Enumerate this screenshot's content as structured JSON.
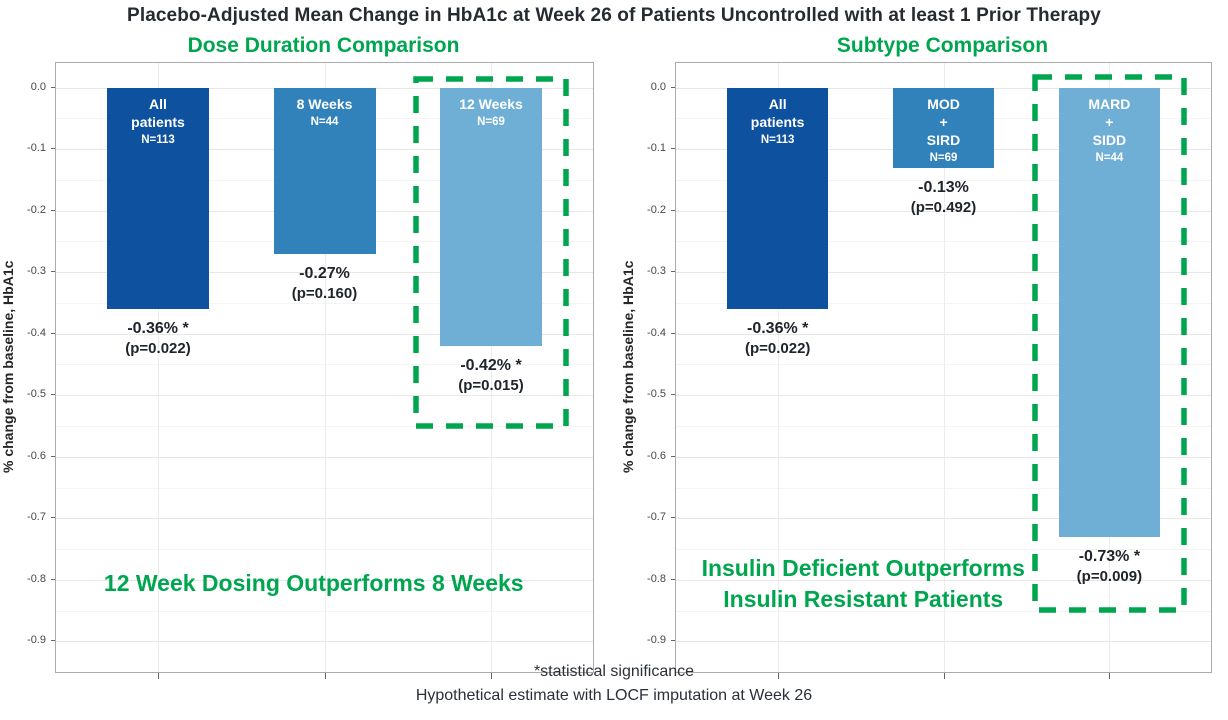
{
  "title": "Placebo-Adjusted Mean Change in HbA1c at Week 26 of Patients Uncontrolled with at least 1 Prior Therapy",
  "footnotes": {
    "line1": "*statistical significance",
    "line2": "Hypothetical estimate with LOCF imputation at Week 26"
  },
  "colors": {
    "dark_blue": "#0d519f",
    "medium_blue": "#3181bb",
    "light_blue": "#6fafd6",
    "highlight_green": "#00a64f",
    "title_text": "#262a31",
    "value_text": "#1f232b"
  },
  "chart_data": [
    {
      "type": "bar",
      "title": "Dose Duration Comparison",
      "xlabel": "",
      "ylabel": "% change from baseline, HbA1c",
      "ylim": [
        -0.95,
        0.04
      ],
      "grid": true,
      "legend": "none",
      "ytick_labels": [
        "0.0",
        "-0.1",
        "-0.2",
        "-0.3",
        "-0.4",
        "-0.5",
        "-0.6",
        "-0.7",
        "-0.8",
        "-0.9"
      ],
      "bar_centers": [
        0.19,
        0.5,
        0.81
      ],
      "bar_width_frac": 0.19,
      "categories": [
        "All patients",
        "8 Weeks",
        "12 Weeks"
      ],
      "values": [
        -0.36,
        -0.27,
        -0.42
      ],
      "bars": [
        {
          "id": "all-patients",
          "label_lines": [
            "All",
            "patients"
          ],
          "n_label": "N=113",
          "value": -0.36,
          "value_label": "-0.36% *",
          "p_label": "(p=0.022)",
          "color": "#0d519f"
        },
        {
          "id": "8-weeks",
          "label_lines": [
            "8 Weeks"
          ],
          "n_label": "N=44",
          "value": -0.27,
          "value_label": "-0.27%",
          "p_label": "(p=0.160)",
          "color": "#3181bb"
        },
        {
          "id": "12-weeks",
          "label_lines": [
            "12 Weeks"
          ],
          "n_label": "N=69",
          "value": -0.42,
          "value_label": "-0.42% *",
          "p_label": "(p=0.015)",
          "color": "#6fafd6"
        }
      ],
      "highlight": {
        "bar_index": 2,
        "width_frac": 0.29,
        "top_frac": 0.021,
        "bottom_frac": 0.601,
        "color": "#00a64f"
      },
      "annotation_lines": [
        "12 Week Dosing Outperforms 8 Weeks"
      ]
    },
    {
      "type": "bar",
      "title": "Subtype Comparison",
      "xlabel": "",
      "ylabel": "% change from baseline, HbA1c",
      "ylim": [
        -0.95,
        0.04
      ],
      "grid": true,
      "legend": "none",
      "ytick_labels": [
        "0.0",
        "-0.1",
        "-0.2",
        "-0.3",
        "-0.4",
        "-0.5",
        "-0.6",
        "-0.7",
        "-0.8",
        "-0.9"
      ],
      "bar_centers": [
        0.19,
        0.5,
        0.81
      ],
      "bar_width_frac": 0.19,
      "categories": [
        "All patients",
        "MOD + SIRD",
        "MARD + SIDD"
      ],
      "values": [
        -0.36,
        -0.13,
        -0.73
      ],
      "bars": [
        {
          "id": "all-patients",
          "label_lines": [
            "All",
            "patients"
          ],
          "n_label": "N=113",
          "value": -0.36,
          "value_label": "-0.36% *",
          "p_label": "(p=0.022)",
          "color": "#0d519f"
        },
        {
          "id": "mod-sird",
          "label_lines": [
            "MOD",
            "+",
            "SIRD"
          ],
          "n_label": "N=69",
          "value": -0.13,
          "value_label": "-0.13%",
          "p_label": "(p=0.492)",
          "color": "#3181bb"
        },
        {
          "id": "mard-sidd",
          "label_lines": [
            "MARD",
            "+",
            "SIDD"
          ],
          "n_label": "N=44",
          "value": -0.73,
          "value_label": "-0.73% *",
          "p_label": "(p=0.009)",
          "color": "#6fafd6"
        }
      ],
      "highlight": {
        "bar_index": 2,
        "width_frac": 0.29,
        "top_frac": 0.018,
        "bottom_frac": 0.903,
        "color": "#00a64f"
      },
      "annotation_lines": [
        "Insulin Deficient Outperforms",
        "Insulin Resistant Patients"
      ]
    }
  ]
}
